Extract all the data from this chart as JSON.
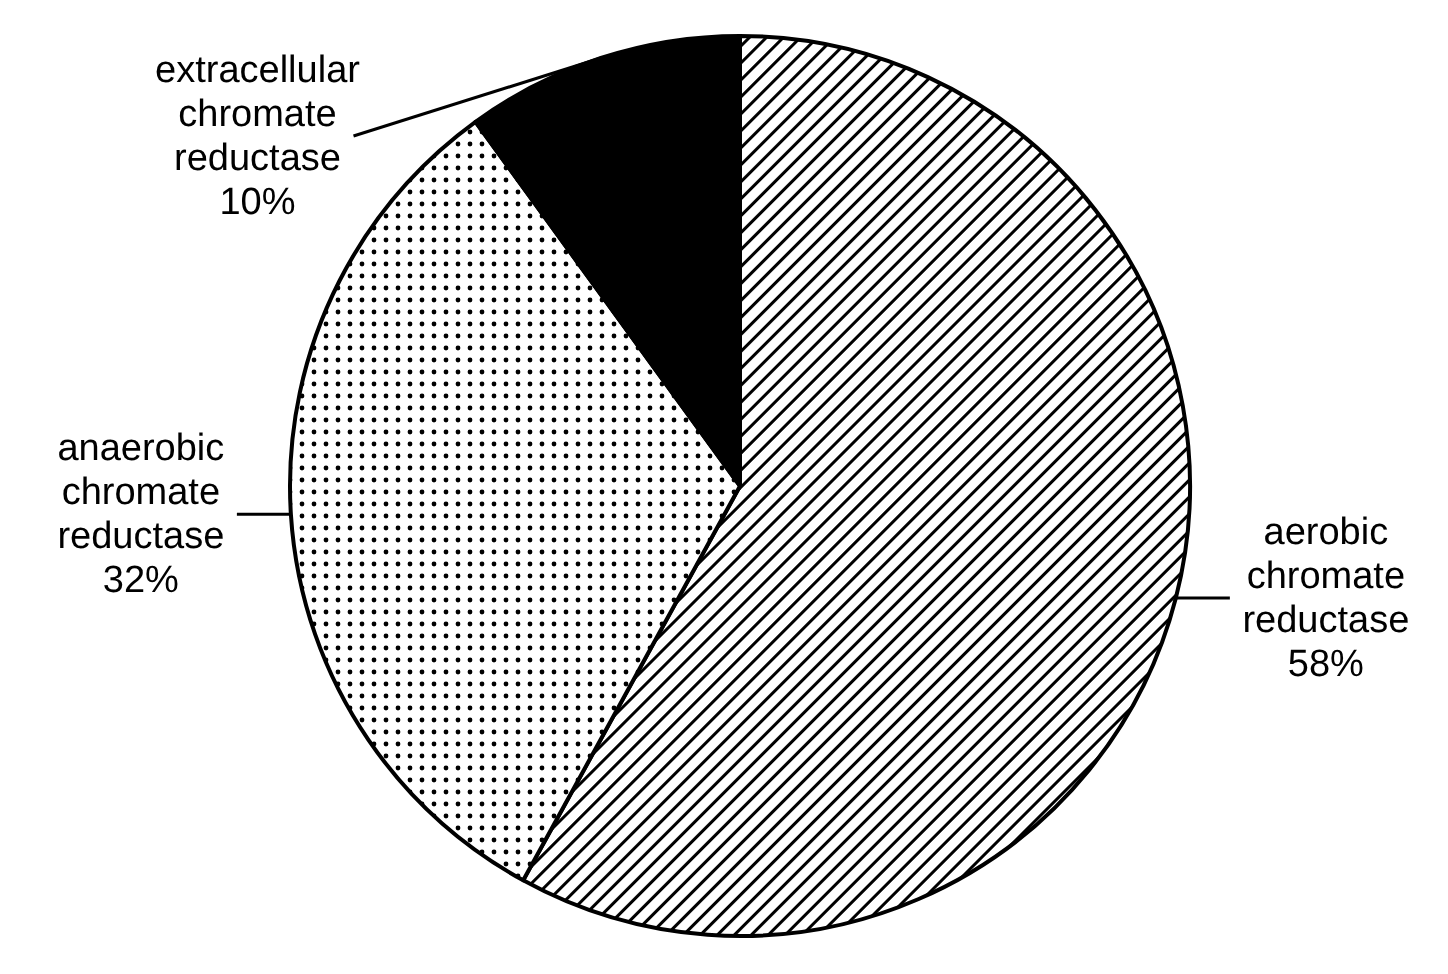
{
  "chart_data": {
    "type": "pie",
    "categories": [
      "aerobic chromate reductase",
      "anaerobic chromate reductase",
      "extracellular chromate reductase"
    ],
    "values": [
      58,
      32,
      10
    ],
    "value_labels": [
      "58%",
      "32%",
      "10%"
    ],
    "colors": [
      "#000000",
      "#000000",
      "#000000"
    ]
  }
}
